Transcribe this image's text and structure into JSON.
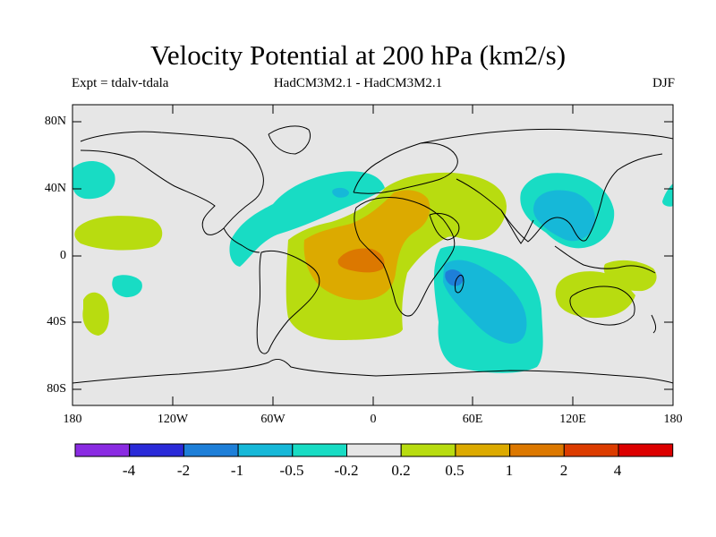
{
  "title": "Velocity Potential at 200 hPa (km2/s)",
  "subtitle_left": "Expt = tdalv-tdala",
  "subtitle_center": "HadCM3M2.1 - HadCM3M2.1",
  "subtitle_right": "DJF",
  "lat_labels": [
    "80N",
    "40N",
    "0",
    "40S",
    "80S"
  ],
  "lon_labels": [
    "180",
    "120W",
    "60W",
    "0",
    "60E",
    "120E",
    "180"
  ],
  "colorbar": {
    "labels": [
      "-4",
      "-2",
      "-1",
      "-0.5",
      "-0.2",
      "0.2",
      "0.5",
      "1",
      "2",
      "4"
    ],
    "colors": [
      "#8a2be2",
      "#2a2ad8",
      "#1e7fd8",
      "#16b8d8",
      "#18dcc4",
      "#e6e6e6",
      "#b8dc10",
      "#dcaa00",
      "#dc7800",
      "#dc3c00",
      "#dc0000"
    ]
  },
  "colors": {
    "land_lines": "#000000",
    "background": "#e6e6e6"
  }
}
